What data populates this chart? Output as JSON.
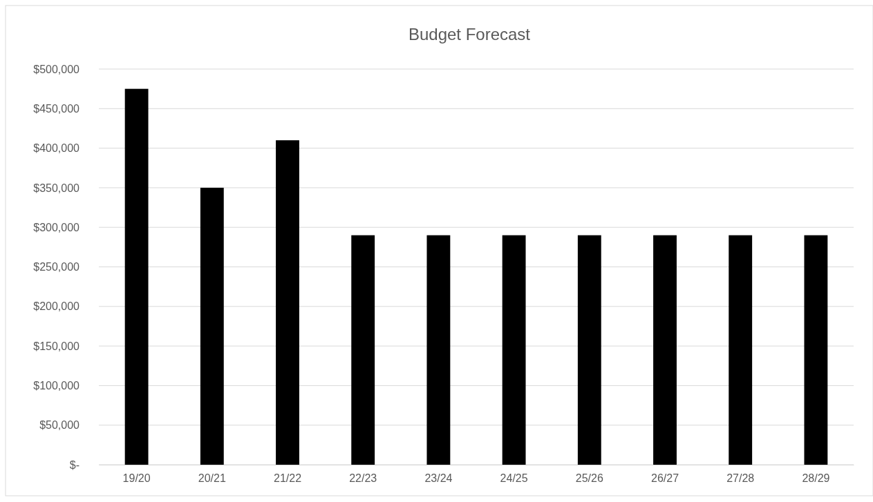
{
  "chart_data": {
    "type": "bar",
    "title": "Budget Forecast",
    "categories": [
      "19/20",
      "20/21",
      "21/22",
      "22/23",
      "23/24",
      "24/25",
      "25/26",
      "26/27",
      "27/28",
      "28/29"
    ],
    "values": [
      475000,
      350000,
      410000,
      290000,
      290000,
      290000,
      290000,
      290000,
      290000,
      290000
    ],
    "color": "#000000",
    "ylim": [
      0,
      500000
    ],
    "yticks": [
      {
        "value": 0,
        "label": "$-"
      },
      {
        "value": 50000,
        "label": "$50,000"
      },
      {
        "value": 100000,
        "label": "$100,000"
      },
      {
        "value": 150000,
        "label": "$150,000"
      },
      {
        "value": 200000,
        "label": "$200,000"
      },
      {
        "value": 250000,
        "label": "$250,000"
      },
      {
        "value": 300000,
        "label": "$300,000"
      },
      {
        "value": 350000,
        "label": "$350,000"
      },
      {
        "value": 400000,
        "label": "$400,000"
      },
      {
        "value": 450000,
        "label": "$450,000"
      },
      {
        "value": 500000,
        "label": "$500,000"
      }
    ],
    "grid": "y"
  }
}
